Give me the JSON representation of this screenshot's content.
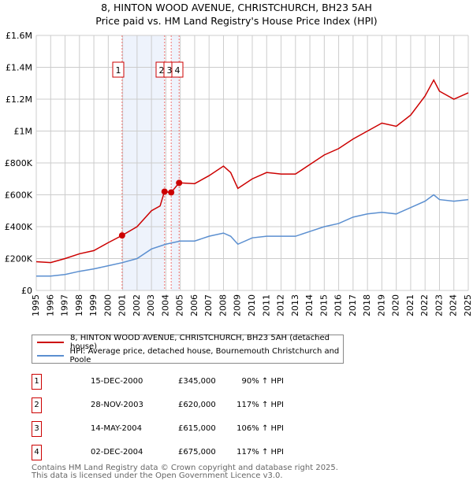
{
  "chart_data": {
    "type": "line",
    "title": "8, HINTON WOOD AVENUE, CHRISTCHURCH, BH23 5AH",
    "subtitle": "Price paid vs. HM Land Registry's House Price Index (HPI)",
    "xlim": [
      1995,
      2025
    ],
    "ylim": [
      0,
      1600000
    ],
    "x_ticks": [
      "1995",
      "1996",
      "1997",
      "1998",
      "1999",
      "2000",
      "2001",
      "2002",
      "2003",
      "2004",
      "2005",
      "2006",
      "2007",
      "2008",
      "2009",
      "2010",
      "2011",
      "2012",
      "2013",
      "2014",
      "2015",
      "2016",
      "2017",
      "2018",
      "2019",
      "2020",
      "2021",
      "2022",
      "2023",
      "2024",
      "2025"
    ],
    "y_ticks": [
      {
        "v": 0,
        "label": "£0"
      },
      {
        "v": 200000,
        "label": "£200K"
      },
      {
        "v": 400000,
        "label": "£400K"
      },
      {
        "v": 600000,
        "label": "£600K"
      },
      {
        "v": 800000,
        "label": "£800K"
      },
      {
        "v": 1000000,
        "label": "£1M"
      },
      {
        "v": 1200000,
        "label": "£1.2M"
      },
      {
        "v": 1400000,
        "label": "£1.4M"
      },
      {
        "v": 1600000,
        "label": "£1.6M"
      }
    ],
    "grid": true,
    "series": [
      {
        "name": "8, HINTON WOOD AVENUE, CHRISTCHURCH, BH23 5AH (detached house)",
        "color": "#cc0000",
        "x": [
          1995,
          1996,
          1997,
          1998,
          1999,
          2000,
          2000.96,
          2002,
          2003,
          2003.6,
          2003.9,
          2004.37,
          2004.92,
          2006,
          2007,
          2008,
          2008.5,
          2009,
          2010,
          2011,
          2012,
          2013,
          2014,
          2015,
          2016,
          2017,
          2018,
          2019,
          2020,
          2021,
          2022,
          2022.6,
          2023,
          2024,
          2025
        ],
        "y": [
          180000,
          175000,
          200000,
          230000,
          250000,
          300000,
          345000,
          400000,
          500000,
          530000,
          620000,
          615000,
          675000,
          670000,
          720000,
          780000,
          740000,
          640000,
          700000,
          740000,
          730000,
          730000,
          790000,
          850000,
          890000,
          950000,
          1000000,
          1050000,
          1030000,
          1100000,
          1220000,
          1320000,
          1250000,
          1200000,
          1240000
        ]
      },
      {
        "name": "HPI: Average price, detached house, Bournemouth Christchurch and Poole",
        "color": "#5b8fd0",
        "x": [
          1995,
          1996,
          1997,
          1998,
          1999,
          2000,
          2001,
          2002,
          2003,
          2004,
          2005,
          2006,
          2007,
          2008,
          2008.5,
          2009,
          2010,
          2011,
          2012,
          2013,
          2014,
          2015,
          2016,
          2017,
          2018,
          2019,
          2020,
          2021,
          2022,
          2022.6,
          2023,
          2024,
          2025
        ],
        "y": [
          90000,
          90000,
          100000,
          120000,
          135000,
          155000,
          175000,
          200000,
          260000,
          290000,
          310000,
          310000,
          340000,
          360000,
          340000,
          290000,
          330000,
          340000,
          340000,
          340000,
          370000,
          400000,
          420000,
          460000,
          480000,
          490000,
          480000,
          520000,
          560000,
          600000,
          570000,
          560000,
          570000
        ]
      }
    ],
    "sales": [
      {
        "label": "1",
        "x": 2000.96,
        "y": 345000
      },
      {
        "label": "2",
        "x": 2003.91,
        "y": 620000
      },
      {
        "label": "3",
        "x": 2004.37,
        "y": 615000
      },
      {
        "label": "4",
        "x": 2004.92,
        "y": 675000
      }
    ],
    "shaded_ranges": [
      [
        2000.96,
        2003.91
      ],
      [
        2004.37,
        2004.92
      ]
    ]
  },
  "legend": {
    "property": "8, HINTON WOOD AVENUE, CHRISTCHURCH, BH23 5AH (detached house)",
    "hpi": "HPI: Average price, detached house, Bournemouth Christchurch and Poole"
  },
  "transactions": [
    {
      "num": "1",
      "date": "15-DEC-2000",
      "price": "£345,000",
      "hpi": "90% ↑ HPI"
    },
    {
      "num": "2",
      "date": "28-NOV-2003",
      "price": "£620,000",
      "hpi": "117% ↑ HPI"
    },
    {
      "num": "3",
      "date": "14-MAY-2004",
      "price": "£615,000",
      "hpi": "106% ↑ HPI"
    },
    {
      "num": "4",
      "date": "02-DEC-2004",
      "price": "£675,000",
      "hpi": "117% ↑ HPI"
    }
  ],
  "footer": {
    "line1": "Contains HM Land Registry data © Crown copyright and database right 2025.",
    "line2": "This data is licensed under the Open Government Licence v3.0."
  }
}
